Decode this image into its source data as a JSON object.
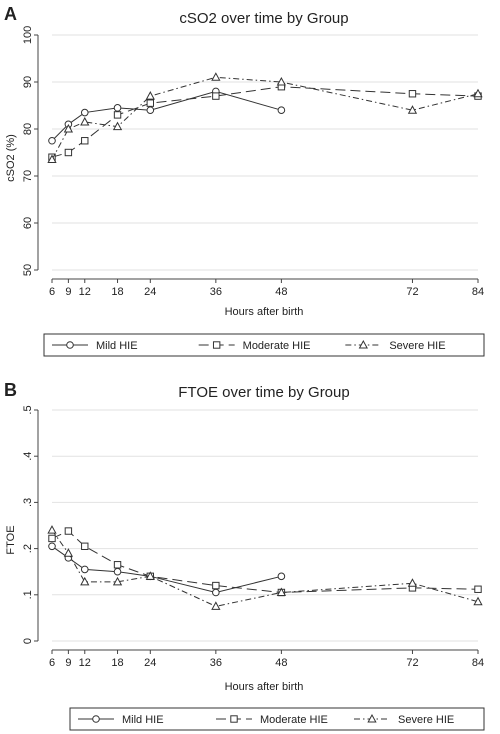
{
  "chart_data": [
    {
      "panel_label": "A",
      "type": "line",
      "title": "cSO2 over time by Group",
      "xlabel": "Hours after birth",
      "ylabel": "cSO2 (%)",
      "xlim": [
        6,
        84
      ],
      "ylim": [
        50,
        100
      ],
      "xticks": [
        6,
        9,
        12,
        18,
        24,
        36,
        48,
        72,
        84
      ],
      "yticks": [
        50,
        60,
        70,
        80,
        90,
        100
      ],
      "grid": true,
      "legend": "bottom",
      "series": [
        {
          "name": "Mild HIE",
          "marker": "circle",
          "dash": "none",
          "x": [
            6,
            9,
            12,
            18,
            24,
            36,
            48
          ],
          "y": [
            77.5,
            81,
            83.5,
            84.5,
            84,
            88,
            84
          ]
        },
        {
          "name": "Moderate HIE",
          "marker": "square",
          "dash": "10,5",
          "x": [
            6,
            9,
            12,
            18,
            24,
            36,
            48,
            72,
            84
          ],
          "y": [
            74,
            75,
            77.5,
            83,
            85.5,
            87,
            89,
            87.5,
            87
          ]
        },
        {
          "name": "Severe HIE",
          "marker": "triangle",
          "dash": "6,3,1.5,3",
          "x": [
            6,
            9,
            12,
            18,
            24,
            36,
            48,
            72,
            84
          ],
          "y": [
            73.5,
            80,
            81.5,
            80.5,
            87,
            91,
            90,
            84,
            87.5
          ]
        }
      ]
    },
    {
      "panel_label": "B",
      "type": "line",
      "title": "FTOE over time by Group",
      "xlabel": "Hours after birth",
      "ylabel": "FTOE",
      "xlim": [
        6,
        84
      ],
      "ylim": [
        0,
        0.5
      ],
      "xticks": [
        6,
        9,
        12,
        18,
        24,
        36,
        48,
        72,
        84
      ],
      "yticks": [
        0,
        0.1,
        0.2,
        0.3,
        0.4,
        0.5
      ],
      "ytick_labels": [
        "0",
        ".1",
        ".2",
        ".3",
        ".4",
        ".5"
      ],
      "grid": true,
      "legend": "bottom",
      "series": [
        {
          "name": "Mild HIE",
          "marker": "circle",
          "dash": "none",
          "x": [
            6,
            9,
            12,
            18,
            24,
            36,
            48
          ],
          "y": [
            0.205,
            0.18,
            0.155,
            0.15,
            0.14,
            0.105,
            0.14
          ]
        },
        {
          "name": "Moderate HIE",
          "marker": "square",
          "dash": "10,5",
          "x": [
            6,
            9,
            12,
            18,
            24,
            36,
            48,
            72,
            84
          ],
          "y": [
            0.222,
            0.238,
            0.205,
            0.165,
            0.14,
            0.12,
            0.105,
            0.115,
            0.112
          ]
        },
        {
          "name": "Severe HIE",
          "marker": "triangle",
          "dash": "6,3,1.5,3",
          "x": [
            6,
            9,
            12,
            18,
            24,
            36,
            48,
            72,
            84
          ],
          "y": [
            0.24,
            0.19,
            0.128,
            0.128,
            0.14,
            0.075,
            0.105,
            0.125,
            0.085
          ]
        }
      ]
    }
  ]
}
